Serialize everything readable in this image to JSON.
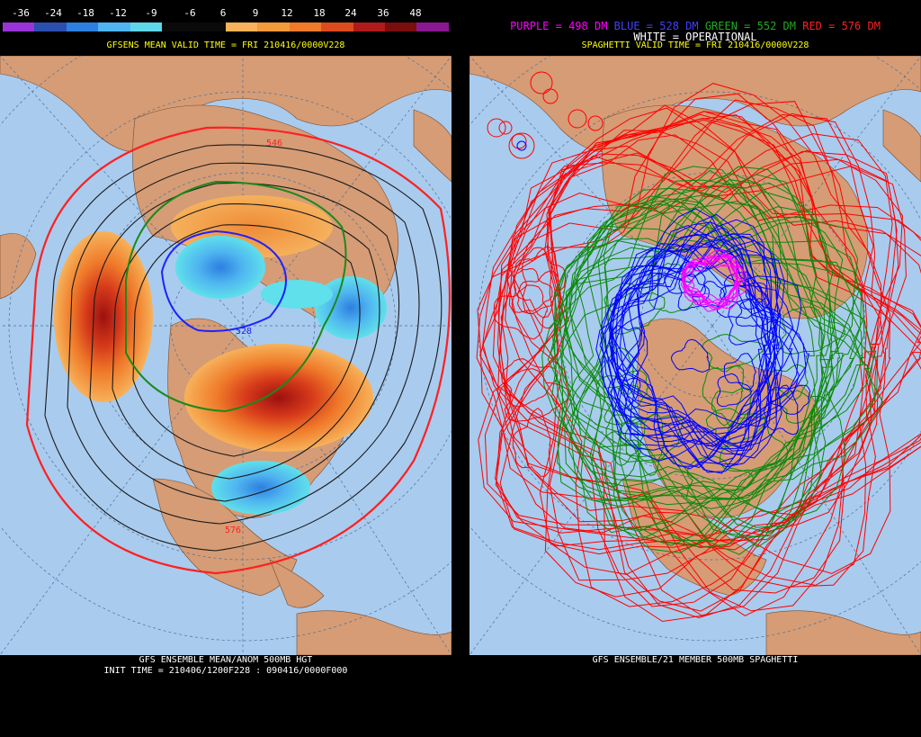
{
  "left": {
    "colorbar": {
      "labels": [
        "-36",
        "-24",
        "-18",
        "-12",
        "-9",
        "-6",
        "6",
        "9",
        "12",
        "18",
        "24",
        "36",
        "48"
      ],
      "colors": [
        "#9a34d6",
        "#2a4fae",
        "#2d7fe0",
        "#4fb5f0",
        "#5fd6ea",
        "#0a0a0a",
        "#0a0a0a",
        "#f7b25a",
        "#f39a3a",
        "#ef7a2a",
        "#dd4a1e",
        "#b11a1a",
        "#7a0e0e",
        "#8a1890"
      ]
    },
    "subtitle": "GFSENS MEAN VALID TIME = FRI 210416/0000V228",
    "footer_line1": "GFS ENSEMBLE MEAN/ANOM 500MB HGT",
    "footer_line2": "INIT TIME = 210406/1200F228 : 090416/0000F000",
    "contour_labels": [
      "546",
      "528",
      "528",
      "576"
    ]
  },
  "right": {
    "legend": {
      "purple": "PURPLE = 498 DM",
      "blue": "BLUE = 528 DM",
      "green": "GREEN = 552 DM",
      "red": "RED = 576 DM",
      "white": "WHITE = OPERATIONAL"
    },
    "subtitle": "SPAGHETTI VALID TIME = FRI 210416/0000V228",
    "footer_line1": "GFS ENSEMBLE/21 MEMBER 500MB SPAGHETTI"
  },
  "colors": {
    "ocean": "#a9cbee",
    "land": "#d59c76",
    "purple": "#ff00ff",
    "blue": "#0000ff",
    "green": "#008800",
    "red": "#ff0000"
  }
}
